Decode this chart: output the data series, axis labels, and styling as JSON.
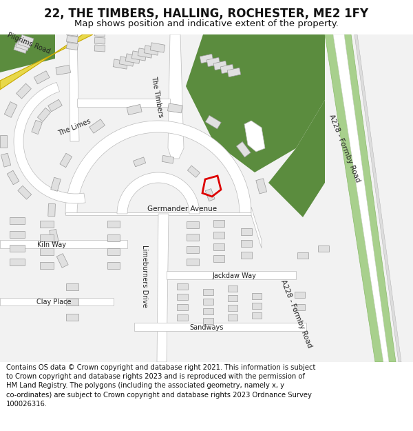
{
  "title": "22, THE TIMBERS, HALLING, ROCHESTER, ME2 1FY",
  "subtitle": "Map shows position and indicative extent of the property.",
  "footer": "Contains OS data © Crown copyright and database right 2021. This information is subject\nto Crown copyright and database rights 2023 and is reproduced with the permission of\nHM Land Registry. The polygons (including the associated geometry, namely x, y\nco-ordinates) are subject to Crown copyright and database rights 2023 Ordnance Survey\n100026316.",
  "bg_color": "#ffffff",
  "map_bg": "#f2f2f2",
  "building_color": "#e0e0e0",
  "building_edge": "#999999",
  "road_color": "#ffffff",
  "road_edge": "#bbbbbb",
  "green_dark": "#5b8c3e",
  "green_light": "#a8d08d",
  "highlight_color": "#dd0000",
  "yellow_road": "#e8d84a",
  "yellow_road_edge": "#c8a800",
  "title_fontsize": 12,
  "subtitle_fontsize": 9.5,
  "footer_fontsize": 7.2
}
